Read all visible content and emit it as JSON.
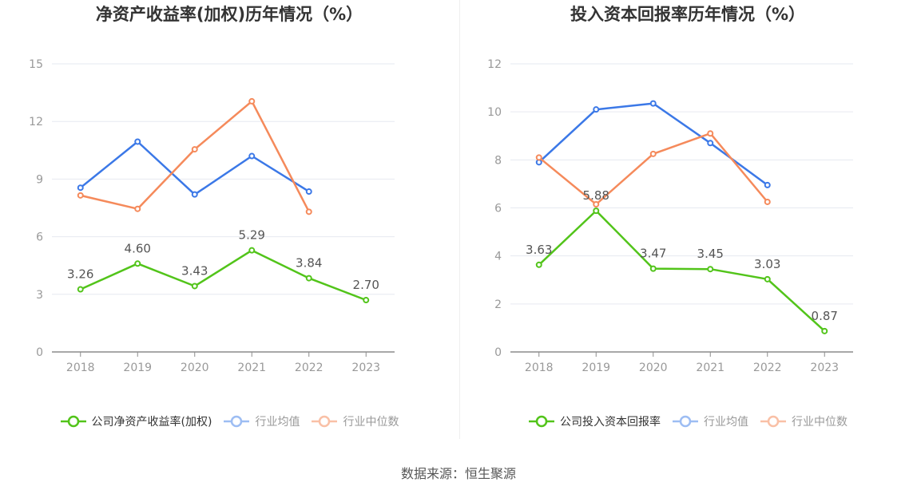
{
  "source_text": "数据来源：恒生聚源",
  "chart_data": [
    {
      "type": "line",
      "title": "净资产收益率(加权)历年情况（%）",
      "categories": [
        "2018",
        "2019",
        "2020",
        "2021",
        "2022",
        "2023"
      ],
      "ylim": [
        0,
        15
      ],
      "yticks": [
        0,
        3,
        6,
        9,
        12,
        15
      ],
      "grid": true,
      "legend_position": "bottom",
      "series": [
        {
          "name": "公司净资产收益率(加权)",
          "color": "#52c41a",
          "labeled": true,
          "muted": false,
          "values": [
            3.26,
            4.6,
            3.43,
            5.29,
            3.84,
            2.7
          ],
          "labels": [
            "3.26",
            "4.60",
            "3.43",
            "5.29",
            "3.84",
            "2.70"
          ]
        },
        {
          "name": "行业均值",
          "color": "#3b78e7",
          "labeled": false,
          "muted": true,
          "values": [
            8.55,
            10.95,
            8.2,
            10.2,
            8.35,
            null
          ]
        },
        {
          "name": "行业中位数",
          "color": "#f58a5b",
          "labeled": false,
          "muted": true,
          "values": [
            8.15,
            7.45,
            10.55,
            13.05,
            7.3,
            null
          ]
        }
      ]
    },
    {
      "type": "line",
      "title": "投入资本回报率历年情况（%）",
      "categories": [
        "2018",
        "2019",
        "2020",
        "2021",
        "2022",
        "2023"
      ],
      "ylim": [
        0,
        12
      ],
      "yticks": [
        0,
        2,
        4,
        6,
        8,
        10,
        12
      ],
      "grid": true,
      "legend_position": "bottom",
      "series": [
        {
          "name": "公司投入资本回报率",
          "color": "#52c41a",
          "labeled": true,
          "muted": false,
          "values": [
            3.63,
            5.88,
            3.47,
            3.45,
            3.03,
            0.87
          ],
          "labels": [
            "3.63",
            "5.88",
            "3.47",
            "3.45",
            "3.03",
            "0.87"
          ]
        },
        {
          "name": "行业均值",
          "color": "#3b78e7",
          "labeled": false,
          "muted": true,
          "values": [
            7.9,
            10.1,
            10.35,
            8.7,
            6.95,
            null
          ]
        },
        {
          "name": "行业中位数",
          "color": "#f58a5b",
          "labeled": false,
          "muted": true,
          "values": [
            8.1,
            6.15,
            8.25,
            9.1,
            6.25,
            null
          ]
        }
      ]
    }
  ]
}
